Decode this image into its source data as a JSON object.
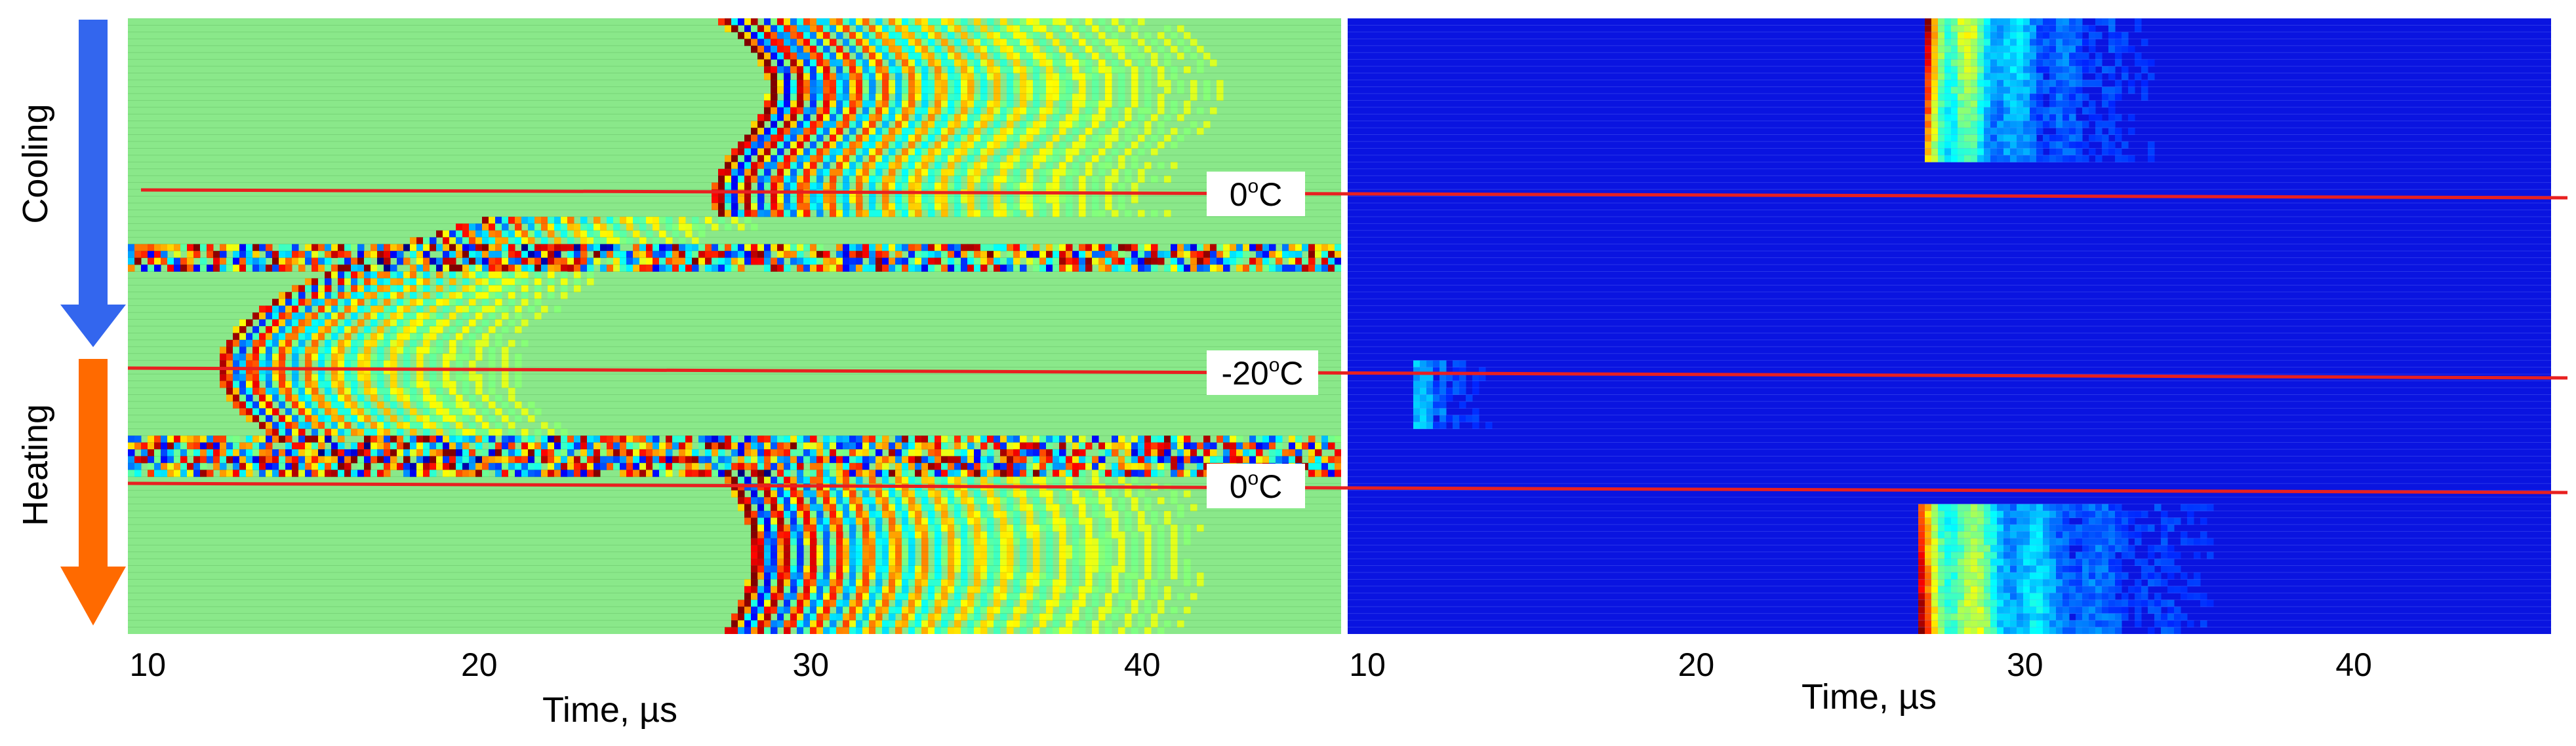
{
  "chart_data": [
    {
      "type": "heatmap",
      "title": "",
      "xlabel": "Time, µs",
      "ylabel": "",
      "x_ticks": [
        "10",
        "20",
        "30",
        "40"
      ],
      "xlim": [
        10,
        46
      ],
      "colormap": "jet",
      "side_labels": [
        "Cooling",
        "Heating"
      ],
      "temperature_markers": [
        {
          "label_main": "0",
          "label_sup": "o",
          "label_unit": "C"
        },
        {
          "label_main": "-20",
          "label_sup": "o",
          "label_unit": "C"
        },
        {
          "label_main": "0",
          "label_sup": "o",
          "label_unit": "C"
        }
      ],
      "colors": {
        "background": "#8ae88a",
        "cooling_arrow": "#3366ee",
        "heating_arrow": "#ff6a00",
        "marker_line": "#e82020"
      }
    },
    {
      "type": "heatmap",
      "title": "",
      "xlabel": "Time, µs",
      "ylabel": "",
      "x_ticks": [
        "10",
        "20",
        "30",
        "40"
      ],
      "xlim": [
        10,
        46
      ],
      "colormap": "jet",
      "colors": {
        "background": "#0a14e0",
        "marker_line": "#e82020"
      }
    }
  ]
}
